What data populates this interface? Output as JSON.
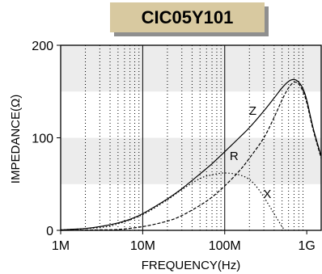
{
  "chart_data": {
    "type": "line",
    "title": "CIC05Y101",
    "xlabel": "FREQUENCY(Hz)",
    "ylabel": "IMPEDANCE(Ω)",
    "xscale": "log",
    "xlim": [
      1000000,
      1500000000
    ],
    "ylim": [
      0,
      200
    ],
    "x_ticks": [
      {
        "value": 1000000,
        "label": "1M"
      },
      {
        "value": 10000000,
        "label": "10M"
      },
      {
        "value": 100000000,
        "label": "100M"
      },
      {
        "value": 1000000000,
        "label": "1G"
      }
    ],
    "y_ticks": [
      {
        "value": 0,
        "label": "0"
      },
      {
        "value": 100,
        "label": "100"
      },
      {
        "value": 200,
        "label": "200"
      }
    ],
    "grid": "dotted vertical lines at each decade step; shaded bands 50-100 and 150-200",
    "series": [
      {
        "name": "Z",
        "style": "solid",
        "x": [
          1000000,
          2000000,
          3000000,
          5000000,
          7000000,
          10000000,
          20000000,
          30000000,
          50000000,
          70000000,
          100000000,
          150000000,
          200000000,
          300000000,
          400000000,
          500000000,
          600000000,
          700000000,
          800000000,
          900000000,
          1000000000,
          1200000000,
          1500000000
        ],
        "values": [
          0.5,
          2,
          4,
          8,
          12,
          18,
          34,
          45,
          61,
          72,
          85,
          100,
          111,
          129,
          143,
          154,
          161,
          163,
          160,
          153,
          141,
          110,
          80
        ]
      },
      {
        "name": "R",
        "style": "dashed",
        "x": [
          1000000,
          3000000,
          5000000,
          10000000,
          20000000,
          30000000,
          50000000,
          70000000,
          100000000,
          150000000,
          200000000,
          300000000,
          400000000,
          500000000,
          600000000,
          700000000,
          800000000,
          900000000,
          1000000000,
          1200000000,
          1500000000
        ],
        "values": [
          0,
          0.5,
          1,
          4,
          10,
          16,
          27,
          36,
          48,
          64,
          78,
          100,
          122,
          141,
          154,
          160,
          158,
          150,
          138,
          108,
          78
        ]
      },
      {
        "name": "X",
        "style": "dotted",
        "x": [
          1000000,
          3000000,
          5000000,
          10000000,
          20000000,
          30000000,
          50000000,
          70000000,
          100000000,
          150000000,
          200000000,
          250000000,
          300000000,
          400000000,
          500000000,
          550000000
        ],
        "values": [
          0.5,
          3,
          7,
          17,
          33,
          44,
          56,
          60,
          62,
          60,
          55,
          46,
          36,
          18,
          4,
          0
        ]
      }
    ],
    "annotations": [
      {
        "text": "Z",
        "x": 220000000,
        "y": 125
      },
      {
        "text": "R",
        "x": 130000000,
        "y": 76
      },
      {
        "text": "X",
        "x": 330000000,
        "y": 35
      }
    ]
  }
}
